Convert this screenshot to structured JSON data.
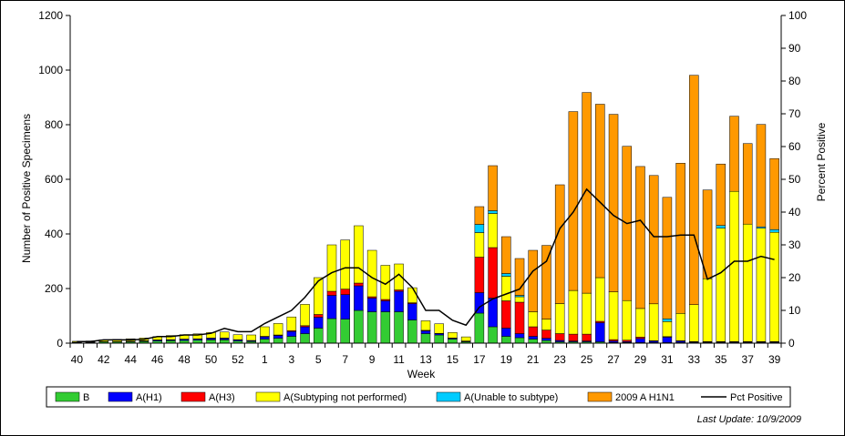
{
  "chart_data": {
    "type": "bar",
    "stacked": true,
    "categories": [
      "40",
      "41",
      "42",
      "43",
      "44",
      "45",
      "46",
      "47",
      "48",
      "49",
      "50",
      "51",
      "52",
      "53",
      "1",
      "2",
      "3",
      "4",
      "5",
      "6",
      "7",
      "8",
      "9",
      "10",
      "11",
      "12",
      "13",
      "14",
      "15",
      "16",
      "17",
      "18",
      "19",
      "20",
      "21",
      "22",
      "23",
      "24",
      "25",
      "26",
      "27",
      "28",
      "29",
      "30",
      "31",
      "32",
      "33",
      "34",
      "35",
      "36",
      "37",
      "38",
      "39"
    ],
    "x_tick_labels": [
      "40",
      "42",
      "44",
      "46",
      "48",
      "50",
      "52",
      "1",
      "3",
      "5",
      "7",
      "9",
      "11",
      "13",
      "15",
      "17",
      "19",
      "21",
      "23",
      "25",
      "27",
      "29",
      "31",
      "33",
      "35",
      "37",
      "39"
    ],
    "xlabel": "Week",
    "ylabel": "Number of Positive Specimens",
    "y2label": "Percent Positive",
    "ylim": [
      0,
      1200
    ],
    "y2lim": [
      0,
      100
    ],
    "y_ticks": [
      "0",
      "200",
      "400",
      "600",
      "800",
      "1000",
      "1200"
    ],
    "y2_ticks": [
      "0",
      "10",
      "20",
      "30",
      "40",
      "50",
      "60",
      "70",
      "80",
      "90",
      "100"
    ],
    "series": [
      {
        "name": "B",
        "color": "#33cc33",
        "values": [
          3,
          3,
          5,
          5,
          5,
          6,
          8,
          9,
          10,
          11,
          12,
          12,
          8,
          6,
          15,
          18,
          25,
          35,
          55,
          90,
          88,
          120,
          115,
          115,
          115,
          85,
          35,
          30,
          15,
          5,
          110,
          60,
          25,
          20,
          15,
          10,
          5,
          5,
          5,
          5,
          3,
          3,
          2,
          2,
          2,
          2,
          2,
          2,
          2,
          2,
          2,
          2,
          2
        ]
      },
      {
        "name": "A(H1)",
        "color": "#0000ff",
        "values": [
          1,
          1,
          1,
          1,
          2,
          2,
          3,
          3,
          4,
          4,
          5,
          5,
          4,
          3,
          8,
          10,
          18,
          25,
          40,
          85,
          90,
          90,
          50,
          40,
          75,
          60,
          10,
          5,
          3,
          2,
          75,
          105,
          30,
          15,
          10,
          8,
          5,
          3,
          3,
          70,
          5,
          3,
          15,
          5,
          20,
          5,
          2,
          2,
          2,
          2,
          2,
          2,
          2
        ]
      },
      {
        "name": "A(H3)",
        "color": "#ff0000",
        "values": [
          0,
          0,
          0,
          0,
          0,
          1,
          1,
          1,
          1,
          1,
          2,
          2,
          1,
          1,
          2,
          2,
          3,
          4,
          10,
          15,
          20,
          10,
          5,
          5,
          5,
          3,
          2,
          1,
          1,
          1,
          130,
          185,
          100,
          115,
          35,
          30,
          25,
          25,
          25,
          5,
          5,
          5,
          5,
          2,
          2,
          2,
          2,
          2,
          2,
          2,
          2,
          2,
          2
        ]
      },
      {
        "name": "A(Subtyping not performed)",
        "color": "#ffff00",
        "values": [
          3,
          4,
          6,
          8,
          9,
          10,
          12,
          15,
          16,
          18,
          20,
          22,
          18,
          20,
          35,
          42,
          50,
          78,
          135,
          170,
          180,
          210,
          170,
          125,
          95,
          55,
          35,
          35,
          20,
          15,
          90,
          125,
          90,
          20,
          55,
          40,
          110,
          160,
          150,
          160,
          175,
          145,
          105,
          135,
          55,
          100,
          135,
          230,
          415,
          550,
          430,
          415,
          400
        ]
      },
      {
        "name": "A(Unable to subtype)",
        "color": "#00ccff",
        "values": [
          0,
          0,
          0,
          0,
          0,
          0,
          0,
          0,
          0,
          0,
          0,
          0,
          0,
          0,
          0,
          0,
          0,
          0,
          0,
          0,
          0,
          0,
          0,
          0,
          0,
          0,
          0,
          0,
          0,
          0,
          30,
          10,
          10,
          5,
          0,
          0,
          0,
          0,
          0,
          0,
          0,
          0,
          0,
          0,
          10,
          0,
          0,
          0,
          10,
          0,
          0,
          5,
          10
        ]
      },
      {
        "name": "2009 A H1N1",
        "color": "#ff9900",
        "values": [
          0,
          0,
          0,
          0,
          0,
          0,
          0,
          0,
          0,
          0,
          0,
          0,
          0,
          0,
          0,
          0,
          0,
          0,
          0,
          0,
          0,
          0,
          0,
          0,
          0,
          0,
          0,
          0,
          0,
          0,
          65,
          165,
          135,
          135,
          225,
          270,
          435,
          655,
          735,
          635,
          650,
          565,
          520,
          470,
          445,
          550,
          840,
          325,
          225,
          275,
          295,
          375,
          260
        ]
      },
      {
        "name": "Pct Positive",
        "type": "line",
        "color": "#000000",
        "axis": "right",
        "values": [
          0.5,
          0.5,
          1,
          1,
          1,
          1.2,
          2,
          2,
          2.5,
          2.5,
          3,
          4.5,
          3.5,
          3.5,
          6,
          8,
          10,
          14,
          19,
          21.5,
          23,
          23,
          20,
          18,
          21,
          17,
          10,
          10,
          7,
          5.5,
          11,
          13.5,
          15,
          16.5,
          22,
          25,
          35,
          40,
          47,
          43,
          39,
          36.5,
          37.5,
          32.5,
          32.5,
          33,
          33,
          19.5,
          21.5,
          25,
          25,
          26.5,
          25.5
        ]
      }
    ],
    "legend_position": "bottom",
    "grid": false
  },
  "footer": {
    "last_update": "Last Update: 10/9/2009"
  }
}
